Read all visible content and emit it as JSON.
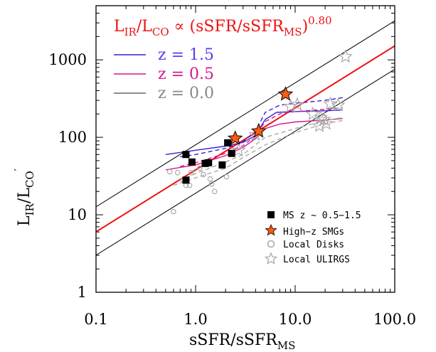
{
  "chart_data": {
    "type": "scatter",
    "xscale": "log",
    "yscale": "log",
    "xlim": [
      0.1,
      100
    ],
    "ylim": [
      1,
      5000
    ],
    "xticks": [
      "0.1",
      "1.0",
      "10.0",
      "100.0"
    ],
    "yticks": [
      "1",
      "10",
      "100",
      "1000"
    ],
    "xlabel_main": "sSFR/sSFR",
    "xlabel_sub": "MS",
    "ylabel_main": "L",
    "ylabel_sub1": "IR",
    "ylabel_sep": "/L",
    "ylabel_sub2": "CO",
    "ylabel_prime": "′",
    "annotation": {
      "l": "L",
      "ir": "IR",
      "slash": "/L",
      "co": "CO",
      "prop": " ∝ (sSFR/sSFR",
      "ms": "MS",
      "close": ")",
      "exp": "0.80"
    },
    "z_legend": [
      {
        "label": "z = 1.5",
        "color": "#3b1fd6"
      },
      {
        "label": "z = 0.5",
        "color": "#d6188a"
      },
      {
        "label": "z = 0.0",
        "color": "#777777"
      }
    ],
    "legend": [
      {
        "label": "MS z ~ 0.5−1.5",
        "marker": "filled-square",
        "color": "#000000"
      },
      {
        "label": "High−z SMGs",
        "marker": "orange-star",
        "color": "#ff5a14"
      },
      {
        "label": "Local Disks",
        "marker": "open-circle",
        "color": "#aaaaaa"
      },
      {
        "label": "Local ULIRGS",
        "marker": "open-star",
        "color": "#aaaaaa"
      }
    ],
    "fit_relation": {
      "slope": 0.8,
      "norm_at_1": 38,
      "color": "#ee1111"
    },
    "scatter_envelope": {
      "upper_norm": 80,
      "lower_norm": 19,
      "color": "#000000"
    },
    "ms_points": [
      [
        0.8,
        60
      ],
      [
        0.92,
        48
      ],
      [
        0.8,
        28
      ],
      [
        1.25,
        46
      ],
      [
        1.35,
        47
      ],
      [
        1.85,
        44
      ],
      [
        2.1,
        85
      ],
      [
        2.3,
        62
      ]
    ],
    "smg_points": [
      [
        2.5,
        97
      ],
      [
        4.3,
        120
      ],
      [
        8.0,
        360
      ]
    ],
    "local_disks": [
      [
        0.55,
        36
      ],
      [
        0.66,
        35
      ],
      [
        0.75,
        28
      ],
      [
        0.8,
        24
      ],
      [
        0.87,
        24
      ],
      [
        0.9,
        35
      ],
      [
        0.6,
        11
      ],
      [
        1.2,
        33
      ],
      [
        1.4,
        29
      ],
      [
        1.45,
        25
      ],
      [
        1.55,
        20
      ],
      [
        2.05,
        31
      ],
      [
        1.1,
        40
      ]
    ],
    "local_ulirgs": [
      [
        2.7,
        68
      ],
      [
        4.0,
        108
      ],
      [
        9.0,
        250
      ],
      [
        10.5,
        265
      ],
      [
        15.0,
        200
      ],
      [
        17.5,
        140
      ],
      [
        19.5,
        170
      ],
      [
        20.5,
        150
      ],
      [
        22.5,
        270
      ],
      [
        27.0,
        260
      ],
      [
        32.0,
        1100
      ],
      [
        18.0,
        180
      ]
    ],
    "curves": [
      {
        "name": "z = 1.5",
        "style": "solid",
        "color": "#3b1fd6",
        "points": [
          [
            0.5,
            60
          ],
          [
            1.0,
            68
          ],
          [
            2.0,
            77
          ],
          [
            3.0,
            86
          ],
          [
            4.0,
            106
          ],
          [
            5.0,
            170
          ],
          [
            6.5,
            210
          ],
          [
            10,
            215
          ],
          [
            15,
            218
          ],
          [
            20,
            220
          ],
          [
            30,
            225
          ]
        ]
      },
      {
        "name": "z = 1.5",
        "style": "dashed",
        "color": "#3b1fd6",
        "points": [
          [
            0.7,
            56
          ],
          [
            1.0,
            60
          ],
          [
            2.0,
            72
          ],
          [
            3.0,
            88
          ],
          [
            4.0,
            120
          ],
          [
            5.0,
            210
          ],
          [
            7.0,
            260
          ],
          [
            10,
            275
          ],
          [
            20,
            300
          ],
          [
            30,
            325
          ]
        ]
      },
      {
        "name": "z = 0.5",
        "style": "solid",
        "color": "#d6188a",
        "points": [
          [
            0.5,
            38
          ],
          [
            1.0,
            44
          ],
          [
            2.0,
            58
          ],
          [
            3.0,
            74
          ],
          [
            4.0,
            96
          ],
          [
            5.0,
            130
          ],
          [
            7.0,
            148
          ],
          [
            10,
            158
          ],
          [
            20,
            167
          ],
          [
            30,
            175
          ]
        ]
      },
      {
        "name": "z = 0.5",
        "style": "dashed",
        "color": "#d6188a",
        "points": [
          [
            0.7,
            42
          ],
          [
            1.0,
            47
          ],
          [
            2.0,
            62
          ],
          [
            3.0,
            78
          ],
          [
            4.0,
            105
          ],
          [
            5.0,
            160
          ],
          [
            7.0,
            200
          ],
          [
            10,
            215
          ],
          [
            20,
            230
          ],
          [
            30,
            240
          ]
        ]
      },
      {
        "name": "z = 0.0",
        "style": "dashed",
        "color": "#aaaaaa",
        "points": [
          [
            0.6,
            24
          ],
          [
            1.0,
            30
          ],
          [
            2.0,
            40
          ],
          [
            3.0,
            55
          ],
          [
            5.0,
            80
          ],
          [
            10,
            115
          ],
          [
            20,
            150
          ],
          [
            30,
            165
          ]
        ]
      },
      {
        "name": "z = 0.0",
        "style": "dashed",
        "color": "#aaaaaa",
        "points": [
          [
            0.8,
            30
          ],
          [
            1.0,
            34
          ],
          [
            2.0,
            48
          ],
          [
            3.0,
            60
          ],
          [
            5.0,
            100
          ],
          [
            10,
            130
          ],
          [
            20,
            165
          ],
          [
            30,
            180
          ]
        ]
      }
    ]
  }
}
